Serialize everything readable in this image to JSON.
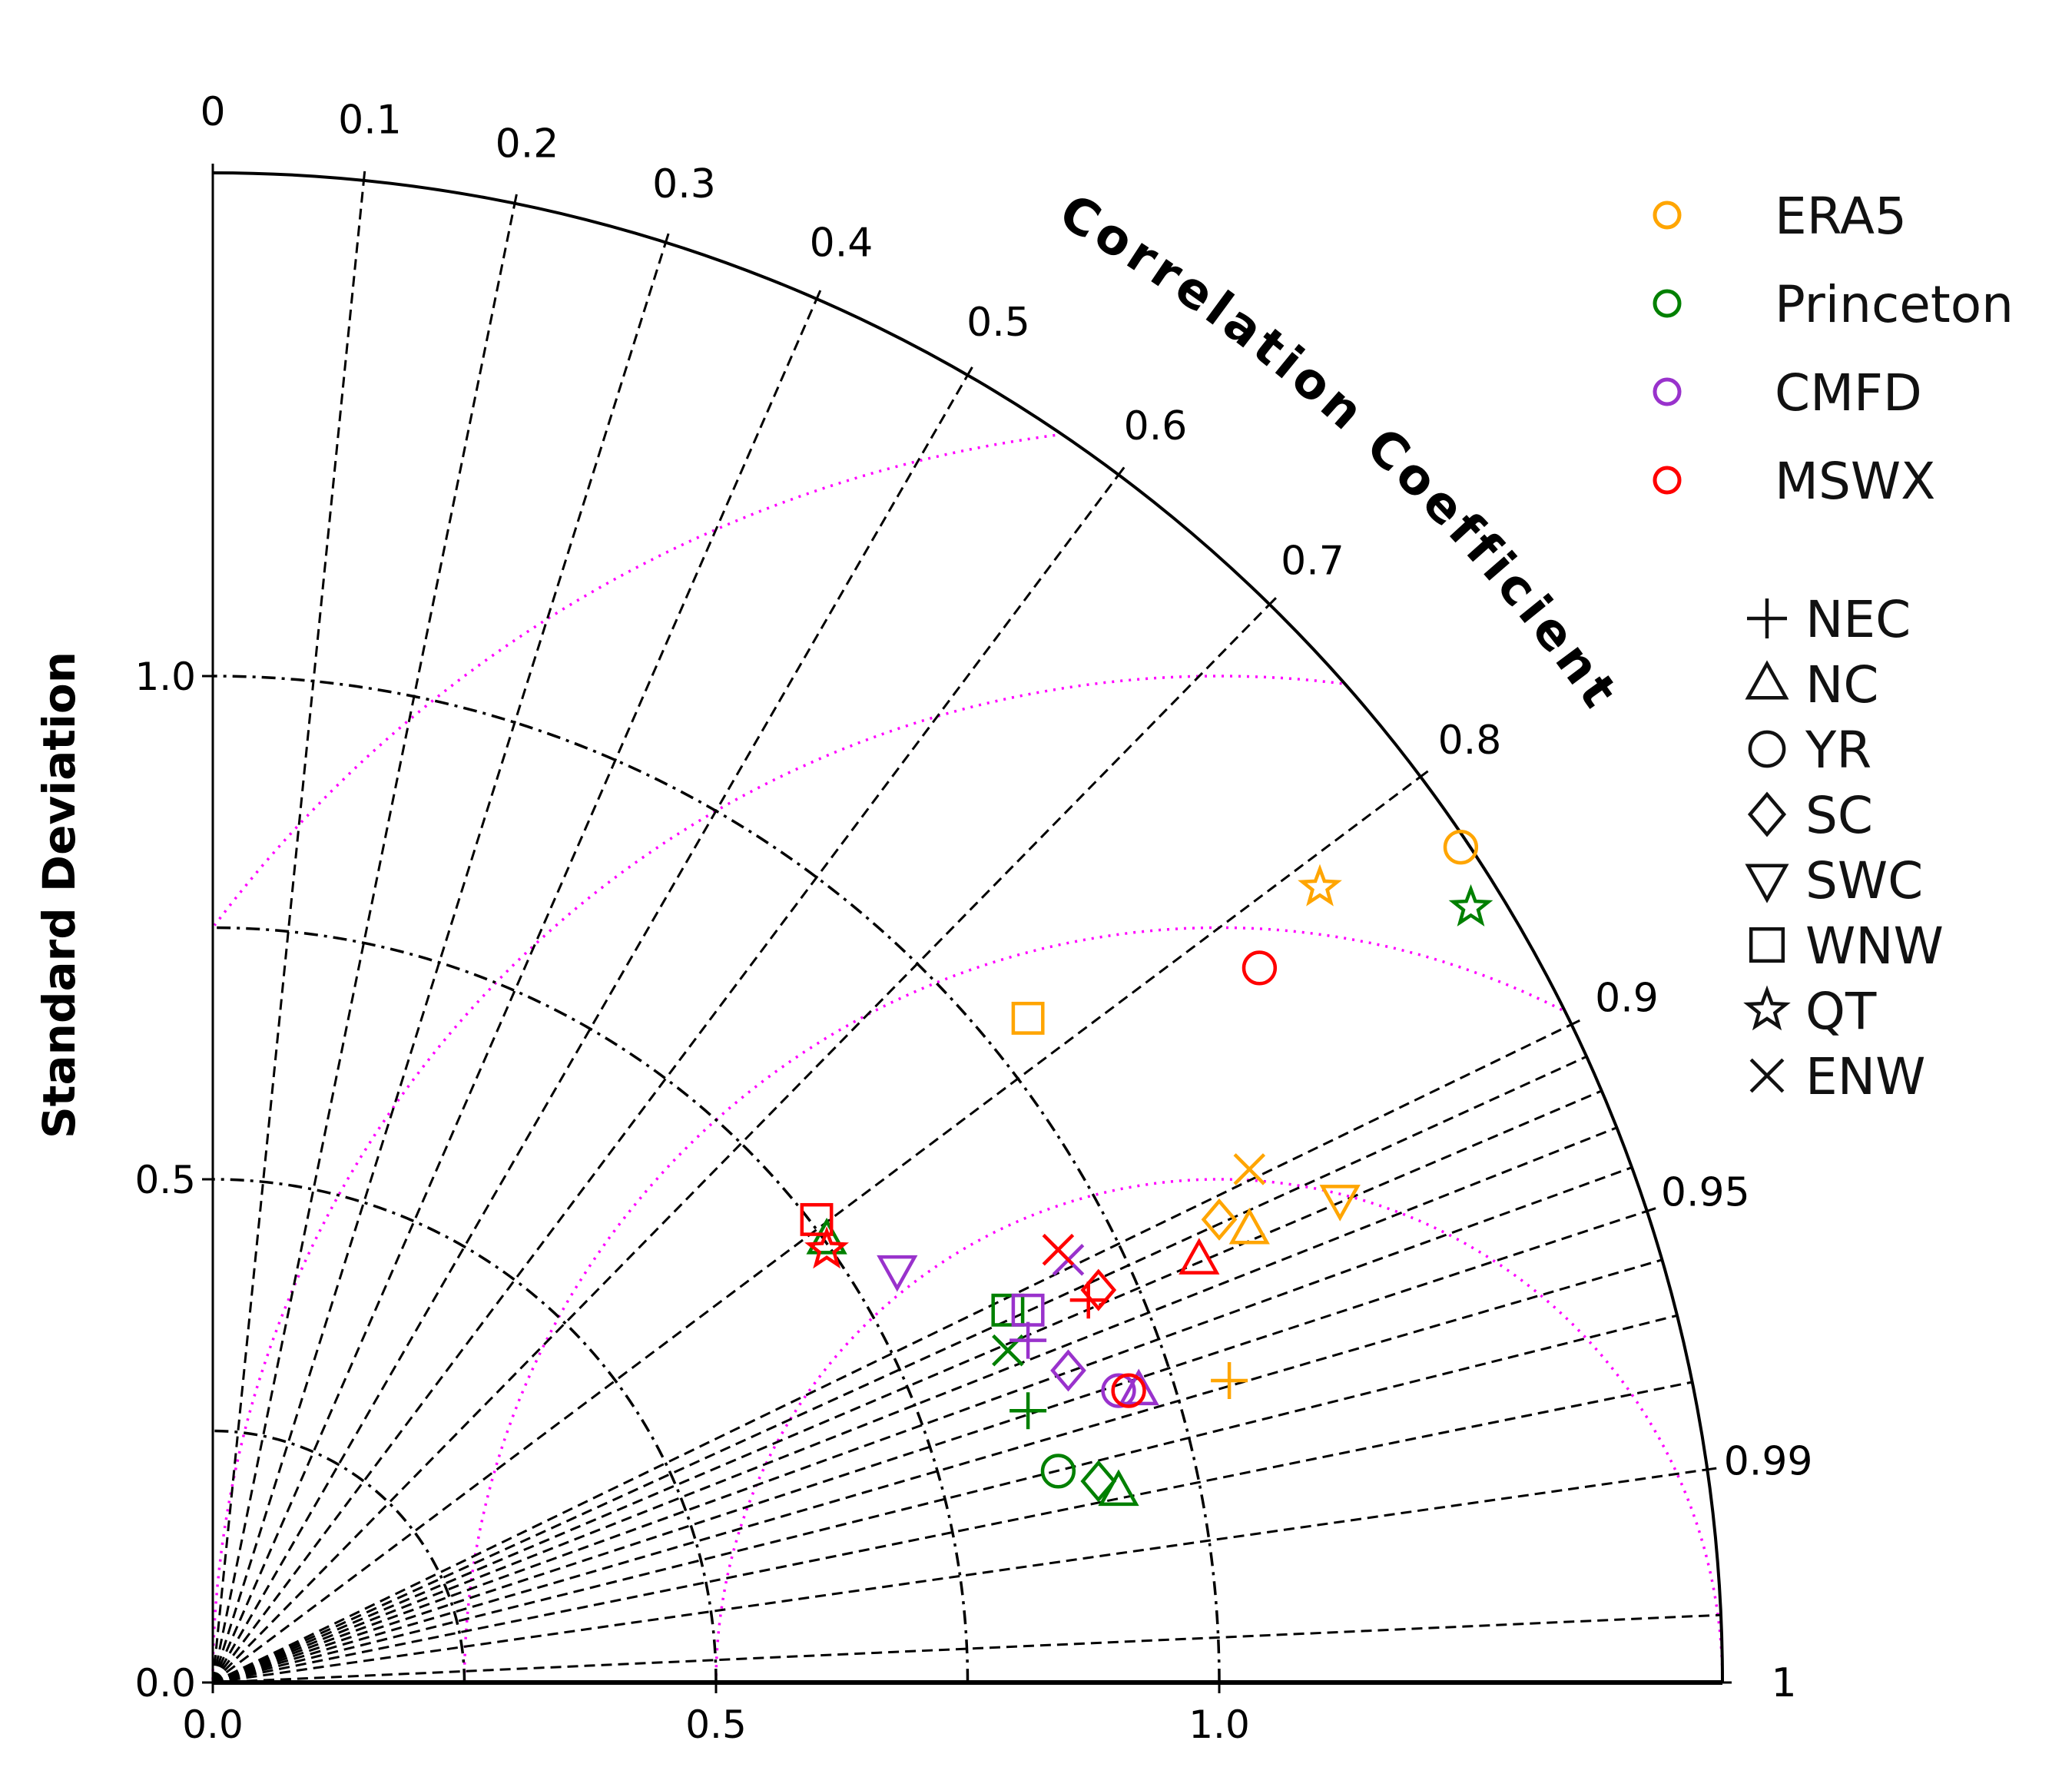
{
  "chart_data": {
    "type": "taylor",
    "title": "",
    "arc_title": "Correlation Coefficient",
    "ylabel": "Standard Deviation",
    "xlabel": "",
    "std_max": 1.5,
    "x_ticks": [
      {
        "value": 0.0,
        "label": "0.0"
      },
      {
        "value": 0.5,
        "label": "0.5"
      },
      {
        "value": 1.0,
        "label": "1.0"
      }
    ],
    "y_ticks": [
      {
        "value": 0.0,
        "label": "0.0"
      },
      {
        "value": 0.5,
        "label": "0.5"
      },
      {
        "value": 1.0,
        "label": "1.0"
      }
    ],
    "correlation_ticks": [
      {
        "value": 0,
        "label": "0"
      },
      {
        "value": 0.1,
        "label": "0.1"
      },
      {
        "value": 0.2,
        "label": "0.2"
      },
      {
        "value": 0.3,
        "label": "0.3"
      },
      {
        "value": 0.4,
        "label": "0.4"
      },
      {
        "value": 0.5,
        "label": "0.5"
      },
      {
        "value": 0.6,
        "label": "0.6"
      },
      {
        "value": 0.7,
        "label": "0.7"
      },
      {
        "value": 0.8,
        "label": "0.8"
      },
      {
        "value": 0.9,
        "label": "0.9"
      },
      {
        "value": 0.95,
        "label": "0.95"
      },
      {
        "value": 0.99,
        "label": "0.99"
      },
      {
        "value": 1,
        "label": "1"
      }
    ],
    "extra_correlation_lines": [
      0.999,
      0.99,
      0.98,
      0.97,
      0.96,
      0.95,
      0.94,
      0.93,
      0.92,
      0.91
    ],
    "std_arcs": [
      0.25,
      0.5,
      0.75,
      1.0
    ],
    "reference_std": 1.0,
    "rmsd_arcs": [
      0.5,
      0.75,
      1.0,
      1.25
    ],
    "colors": {
      "ERA5": "#ffa500",
      "Princeton": "#008000",
      "CMFD": "#9932cc",
      "MSWX": "#ff0000",
      "rmsd": "#ff00ff"
    },
    "datasets": [
      {
        "name": "ERA5",
        "color": "#ffa500"
      },
      {
        "name": "Princeton",
        "color": "#008000"
      },
      {
        "name": "CMFD",
        "color": "#9932cc"
      },
      {
        "name": "MSWX",
        "color": "#ff0000"
      }
    ],
    "regions": [
      {
        "name": "NEC",
        "marker": "plus"
      },
      {
        "name": "NC",
        "marker": "triangle-up"
      },
      {
        "name": "YR",
        "marker": "circle"
      },
      {
        "name": "SC",
        "marker": "diamond"
      },
      {
        "name": "SWC",
        "marker": "triangle-down"
      },
      {
        "name": "WNW",
        "marker": "square"
      },
      {
        "name": "QT",
        "marker": "star"
      },
      {
        "name": "ENW",
        "marker": "x"
      }
    ],
    "points": [
      {
        "dataset": "ERA5",
        "region": "YR",
        "x": 1.24,
        "y": 0.83
      },
      {
        "dataset": "ERA5",
        "region": "QT",
        "x": 1.1,
        "y": 0.79
      },
      {
        "dataset": "ERA5",
        "region": "WNW",
        "x": 0.81,
        "y": 0.66
      },
      {
        "dataset": "ERA5",
        "region": "ENW",
        "x": 1.03,
        "y": 0.51
      },
      {
        "dataset": "ERA5",
        "region": "SWC",
        "x": 1.12,
        "y": 0.48
      },
      {
        "dataset": "ERA5",
        "region": "SC",
        "x": 1.0,
        "y": 0.46
      },
      {
        "dataset": "ERA5",
        "region": "NC",
        "x": 1.03,
        "y": 0.45
      },
      {
        "dataset": "ERA5",
        "region": "NEC",
        "x": 1.01,
        "y": 0.3
      },
      {
        "dataset": "Princeton",
        "region": "QT",
        "x": 1.25,
        "y": 0.77
      },
      {
        "dataset": "Princeton",
        "region": "NC",
        "x": 0.61,
        "y": 0.44
      },
      {
        "dataset": "Princeton",
        "region": "WNW",
        "x": 0.79,
        "y": 0.37
      },
      {
        "dataset": "Princeton",
        "region": "ENW",
        "x": 0.79,
        "y": 0.33
      },
      {
        "dataset": "Princeton",
        "region": "NEC",
        "x": 0.81,
        "y": 0.27
      },
      {
        "dataset": "Princeton",
        "region": "YR",
        "x": 0.84,
        "y": 0.21
      },
      {
        "dataset": "Princeton",
        "region": "SC",
        "x": 0.88,
        "y": 0.2
      },
      {
        "dataset": "Princeton",
        "region": "NC",
        "x": 0.9,
        "y": 0.19
      },
      {
        "dataset": "CMFD",
        "region": "SWC",
        "x": 0.68,
        "y": 0.41
      },
      {
        "dataset": "CMFD",
        "region": "ENW",
        "x": 0.85,
        "y": 0.42
      },
      {
        "dataset": "CMFD",
        "region": "WNW",
        "x": 0.81,
        "y": 0.37
      },
      {
        "dataset": "CMFD",
        "region": "NEC",
        "x": 0.81,
        "y": 0.34
      },
      {
        "dataset": "CMFD",
        "region": "SC",
        "x": 0.85,
        "y": 0.31
      },
      {
        "dataset": "CMFD",
        "region": "YR",
        "x": 0.9,
        "y": 0.29
      },
      {
        "dataset": "CMFD",
        "region": "NC",
        "x": 0.92,
        "y": 0.29
      },
      {
        "dataset": "MSWX",
        "region": "YR",
        "x": 1.04,
        "y": 0.71
      },
      {
        "dataset": "MSWX",
        "region": "WNW",
        "x": 0.6,
        "y": 0.46
      },
      {
        "dataset": "MSWX",
        "region": "QT",
        "x": 0.61,
        "y": 0.43
      },
      {
        "dataset": "MSWX",
        "region": "NC",
        "x": 0.98,
        "y": 0.42
      },
      {
        "dataset": "MSWX",
        "region": "ENW",
        "x": 0.84,
        "y": 0.43
      },
      {
        "dataset": "MSWX",
        "region": "SC",
        "x": 0.88,
        "y": 0.39
      },
      {
        "dataset": "MSWX",
        "region": "NEC",
        "x": 0.87,
        "y": 0.38
      },
      {
        "dataset": "MSWX",
        "region": "YR",
        "x": 0.91,
        "y": 0.29
      }
    ]
  }
}
